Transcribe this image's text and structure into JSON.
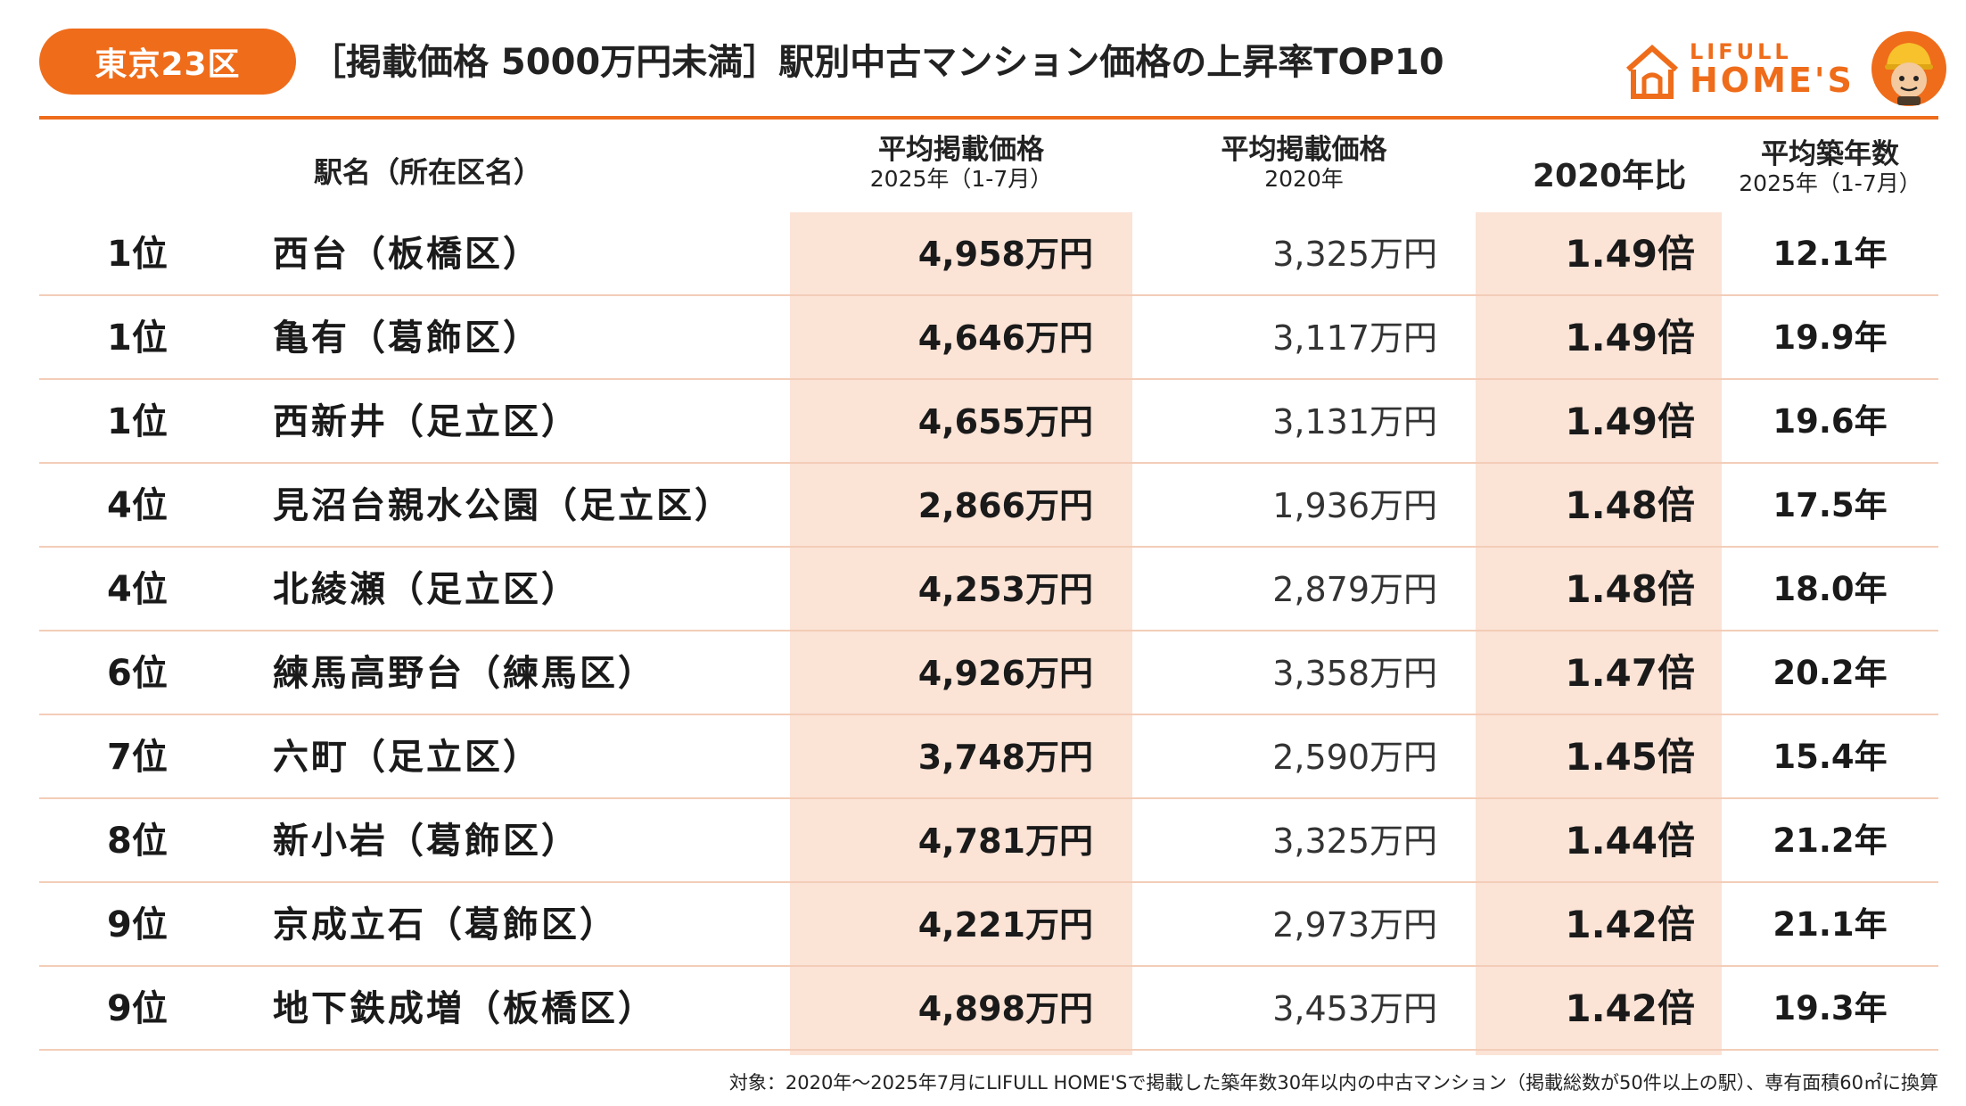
{
  "header": {
    "badge": "東京23区",
    "title": "［掲載価格 5000万円未満］駅別中古マンション価格の上昇率TOP10",
    "logo_top": "LIFULL",
    "logo_bottom": "HOME'S"
  },
  "columns": {
    "station": "駅名（所在区名）",
    "price_2025_l1": "平均掲載価格",
    "price_2025_l2": "2025年（1-7月）",
    "price_2020_l1": "平均掲載価格",
    "price_2020_l2": "2020年",
    "ratio": "2020年比",
    "age_l1": "平均築年数",
    "age_l2": "2025年（1-7月）"
  },
  "colors": {
    "accent": "#ef6c1a",
    "highlight": "#fbe3d6",
    "separator": "#f3cdb8"
  },
  "chart_data": {
    "type": "table",
    "title": "［掲載価格 5000万円未満］駅別中古マンション価格の上昇率TOP10",
    "columns": [
      "駅名（所在区名）",
      "平均掲載価格 2025年（1-7月）",
      "平均掲載価格 2020年",
      "2020年比",
      "平均築年数 2025年（1-7月）"
    ],
    "rows": [
      {
        "rank": "1位",
        "station": "西台（板橋区）",
        "price_2025": "4,958万円",
        "price_2020": "3,325万円",
        "ratio": "1.49倍",
        "age": "12.1年"
      },
      {
        "rank": "1位",
        "station": "亀有（葛飾区）",
        "price_2025": "4,646万円",
        "price_2020": "3,117万円",
        "ratio": "1.49倍",
        "age": "19.9年"
      },
      {
        "rank": "1位",
        "station": "西新井（足立区）",
        "price_2025": "4,655万円",
        "price_2020": "3,131万円",
        "ratio": "1.49倍",
        "age": "19.6年"
      },
      {
        "rank": "4位",
        "station": "見沼台親水公園（足立区）",
        "price_2025": "2,866万円",
        "price_2020": "1,936万円",
        "ratio": "1.48倍",
        "age": "17.5年"
      },
      {
        "rank": "4位",
        "station": "北綾瀬（足立区）",
        "price_2025": "4,253万円",
        "price_2020": "2,879万円",
        "ratio": "1.48倍",
        "age": "18.0年"
      },
      {
        "rank": "6位",
        "station": "練馬高野台（練馬区）",
        "price_2025": "4,926万円",
        "price_2020": "3,358万円",
        "ratio": "1.47倍",
        "age": "20.2年"
      },
      {
        "rank": "7位",
        "station": "六町（足立区）",
        "price_2025": "3,748万円",
        "price_2020": "2,590万円",
        "ratio": "1.45倍",
        "age": "15.4年"
      },
      {
        "rank": "8位",
        "station": "新小岩（葛飾区）",
        "price_2025": "4,781万円",
        "price_2020": "3,325万円",
        "ratio": "1.44倍",
        "age": "21.2年"
      },
      {
        "rank": "9位",
        "station": "京成立石（葛飾区）",
        "price_2025": "4,221万円",
        "price_2020": "2,973万円",
        "ratio": "1.42倍",
        "age": "21.1年"
      },
      {
        "rank": "9位",
        "station": "地下鉄成増（板橋区）",
        "price_2025": "4,898万円",
        "price_2020": "3,453万円",
        "ratio": "1.42倍",
        "age": "19.3年"
      }
    ]
  },
  "footnote": "対象：2020年〜2025年7月にLIFULL HOME'Sで掲載した築年数30年以内の中古マンション（掲載総数が50件以上の駅）、専有面積60㎡に換算"
}
